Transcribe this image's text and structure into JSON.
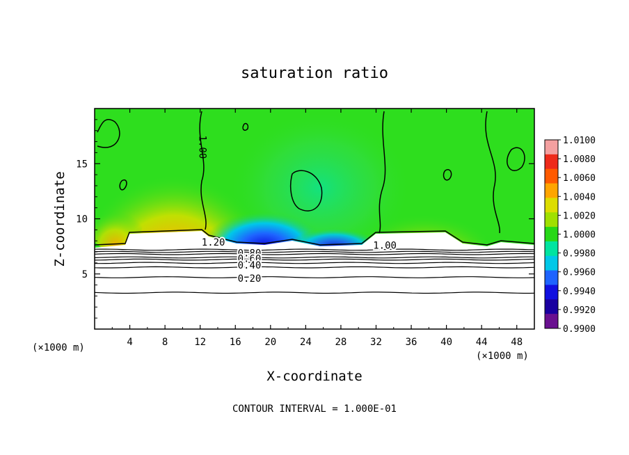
{
  "chart_data": {
    "type": "heatmap",
    "title": "saturation ratio",
    "xlabel": "X-coordinate",
    "ylabel": "Z-coordinate",
    "x_unit_left": "(×1000 m)",
    "x_unit_right": "(×1000 m)",
    "xlim": [
      0,
      50
    ],
    "ylim": [
      0,
      20
    ],
    "x_ticks": [
      4,
      8,
      12,
      16,
      20,
      24,
      28,
      32,
      36,
      40,
      44,
      48
    ],
    "y_ticks": [
      5,
      10,
      15
    ],
    "footer": "CONTOUR INTERVAL = 1.000E-01",
    "colorbar": {
      "labels": [
        "1.0100",
        "1.0080",
        "1.0060",
        "1.0040",
        "1.0020",
        "1.0000",
        "0.9980",
        "0.9960",
        "0.9940",
        "0.9920",
        "0.9900"
      ],
      "colors": [
        "#f4a0a0",
        "#ee2a1a",
        "#ff5a00",
        "#ffa500",
        "#dddd00",
        "#a0e000",
        "#27d817",
        "#00e4a0",
        "#00c8e8",
        "#1e64ff",
        "#1010e0",
        "#1a00a0",
        "#6a1090"
      ]
    },
    "contour_labels": [
      {
        "text": "1.00",
        "x": 12.3,
        "z": 16.5
      },
      {
        "text": "1.20",
        "x": 13.5,
        "z": 7.9
      },
      {
        "text": "0.80",
        "x": 17.6,
        "z": 6.9
      },
      {
        "text": "0.60",
        "x": 17.6,
        "z": 6.4
      },
      {
        "text": "0.40",
        "x": 17.6,
        "z": 5.8
      },
      {
        "text": "0.20",
        "x": 17.6,
        "z": 4.6
      },
      {
        "text": "1.00",
        "x": 33.0,
        "z": 7.6
      }
    ],
    "contour_levels_z": [
      3.3,
      4.7,
      5.6,
      6.0,
      6.3,
      6.5,
      6.8,
      7.0,
      7.2
    ]
  }
}
